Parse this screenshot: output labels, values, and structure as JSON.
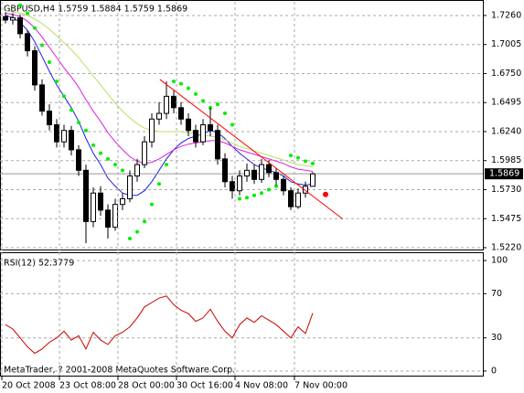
{
  "chart_data": [
    {
      "type": "candlestick",
      "title": "GBPUSD,H4  1.5759 1.5884 1.5759 1.5869",
      "x": [
        0,
        1,
        2,
        3,
        4,
        5,
        6,
        7,
        8,
        9,
        10,
        11,
        12,
        13,
        14,
        15,
        16,
        17,
        18,
        19,
        20,
        21,
        22,
        23,
        24,
        25,
        26,
        27,
        28,
        29,
        30,
        31,
        32,
        33,
        34,
        35,
        36,
        37,
        38,
        39,
        40,
        41,
        42
      ],
      "open": [
        1.725,
        1.722,
        1.724,
        1.71,
        1.695,
        1.665,
        1.642,
        1.63,
        1.615,
        1.625,
        1.608,
        1.59,
        1.545,
        1.57,
        1.555,
        1.54,
        1.56,
        1.565,
        1.585,
        1.595,
        1.615,
        1.635,
        1.64,
        1.655,
        1.645,
        1.635,
        1.625,
        1.615,
        1.63,
        1.625,
        1.6,
        1.58,
        1.572,
        1.585,
        1.59,
        1.582,
        1.595,
        1.588,
        1.582,
        1.572,
        1.558,
        1.57,
        1.5759
      ],
      "high": [
        1.729,
        1.728,
        1.727,
        1.713,
        1.699,
        1.67,
        1.648,
        1.635,
        1.63,
        1.629,
        1.612,
        1.595,
        1.575,
        1.576,
        1.56,
        1.565,
        1.57,
        1.59,
        1.6,
        1.62,
        1.64,
        1.65,
        1.668,
        1.66,
        1.65,
        1.64,
        1.63,
        1.635,
        1.645,
        1.63,
        1.605,
        1.585,
        1.59,
        1.596,
        1.595,
        1.6,
        1.599,
        1.592,
        1.585,
        1.575,
        1.574,
        1.58,
        1.5884
      ],
      "low": [
        1.719,
        1.718,
        1.706,
        1.69,
        1.66,
        1.638,
        1.625,
        1.61,
        1.61,
        1.603,
        1.585,
        1.526,
        1.54,
        1.55,
        1.53,
        1.537,
        1.555,
        1.562,
        1.58,
        1.592,
        1.61,
        1.63,
        1.635,
        1.64,
        1.63,
        1.62,
        1.61,
        1.612,
        1.62,
        1.595,
        1.575,
        1.565,
        1.568,
        1.58,
        1.578,
        1.579,
        1.584,
        1.577,
        1.568,
        1.555,
        1.556,
        1.566,
        1.5759
      ],
      "close": [
        1.722,
        1.724,
        1.71,
        1.695,
        1.665,
        1.642,
        1.63,
        1.615,
        1.625,
        1.608,
        1.59,
        1.545,
        1.57,
        1.555,
        1.54,
        1.56,
        1.565,
        1.585,
        1.595,
        1.615,
        1.635,
        1.64,
        1.655,
        1.645,
        1.635,
        1.625,
        1.615,
        1.63,
        1.625,
        1.6,
        1.58,
        1.572,
        1.585,
        1.59,
        1.582,
        1.595,
        1.588,
        1.582,
        1.572,
        1.558,
        1.57,
        1.5759,
        1.5869
      ],
      "series": [
        {
          "style": "line",
          "color": "#2020e0",
          "values": [
            1.726,
            1.724,
            1.72,
            1.713,
            1.703,
            1.69,
            1.677,
            1.665,
            1.655,
            1.645,
            1.633,
            1.618,
            1.605,
            1.595,
            1.583,
            1.576,
            1.57,
            1.568,
            1.568,
            1.572,
            1.58,
            1.59,
            1.6,
            1.608,
            1.614,
            1.618,
            1.62,
            1.622,
            1.625,
            1.623,
            1.618,
            1.611,
            1.605,
            1.6,
            1.595,
            1.592,
            1.59,
            1.588,
            1.585,
            1.58,
            1.578,
            1.577,
            1.578
          ]
        },
        {
          "style": "line",
          "color": "#e020e0",
          "values": [
            1.728,
            1.727,
            1.725,
            1.721,
            1.715,
            1.707,
            1.698,
            1.689,
            1.68,
            1.672,
            1.663,
            1.652,
            1.642,
            1.633,
            1.623,
            1.615,
            1.608,
            1.602,
            1.598,
            1.596,
            1.597,
            1.6,
            1.604,
            1.608,
            1.611,
            1.613,
            1.614,
            1.615,
            1.616,
            1.616,
            1.614,
            1.611,
            1.608,
            1.606,
            1.604,
            1.602,
            1.6,
            1.598,
            1.596,
            1.593,
            1.591,
            1.59,
            1.589
          ]
        },
        {
          "style": "line",
          "color": "#b8e060",
          "values": [
            1.73,
            1.729,
            1.728,
            1.726,
            1.723,
            1.719,
            1.714,
            1.708,
            1.702,
            1.696,
            1.689,
            1.681,
            1.673,
            1.665,
            1.657,
            1.649,
            1.642,
            1.636,
            1.631,
            1.627,
            1.625,
            1.624,
            1.624,
            1.624,
            1.624,
            1.623,
            1.622,
            1.621,
            1.62,
            1.619,
            1.617,
            1.614,
            1.611,
            1.609,
            1.607,
            1.605,
            1.603,
            1.601,
            1.599,
            1.597,
            1.595,
            1.594,
            1.593
          ]
        },
        {
          "style": "dots",
          "color": "#00ee00",
          "values": [
            null,
            null,
            1.735,
            1.728,
            1.715,
            1.7,
            1.685,
            1.668,
            1.655,
            1.643,
            1.632,
            1.625,
            1.612,
            1.605,
            1.6,
            1.595,
            1.59,
            1.53,
            1.536,
            1.545,
            1.56,
            1.578,
            1.595,
            1.668,
            1.666,
            1.662,
            1.657,
            1.651,
            1.645,
            1.648,
            1.64,
            1.63,
            1.565,
            1.566,
            1.568,
            1.57,
            1.573,
            1.576,
            1.58,
            1.603,
            1.601,
            1.598,
            1.596
          ]
        }
      ],
      "trend_line": {
        "x": [
          21.1,
          46.1
        ],
        "y": [
          1.6698,
          1.5472
        ],
        "color": "#ff0000"
      },
      "marker": {
        "x": 43.75,
        "y": 1.5688,
        "color": "#ff0000"
      },
      "last_price": 1.5869,
      "xlim": [
        -0.75,
        65.25
      ],
      "ylim": [
        1.5196,
        1.738
      ],
      "yticks": [
        {
          "value": 1.726,
          "label": "1.7260"
        },
        1.7005,
        {
          "value": 1.675,
          "label": "1.6750"
        },
        1.6495,
        {
          "value": 1.624,
          "label": "1.6240"
        },
        1.5985,
        {
          "value": 1.573,
          "label": "1.5730"
        },
        1.5475,
        {
          "value": 1.522,
          "label": "1.5220"
        }
      ],
      "grid": true
    },
    {
      "type": "line",
      "title": "RSI(12) 52.3779",
      "footer": "MetaTrader, ? 2001-2008 MetaQuotes Software Corp.",
      "x": [
        0,
        1,
        2,
        3,
        4,
        5,
        6,
        7,
        8,
        9,
        10,
        11,
        12,
        13,
        14,
        15,
        16,
        17,
        18,
        19,
        20,
        21,
        22,
        23,
        24,
        25,
        26,
        27,
        28,
        29,
        30,
        31,
        32,
        33,
        34,
        35,
        36,
        37,
        38,
        39,
        40,
        41,
        42
      ],
      "values": [
        42,
        38,
        30,
        22,
        16,
        20,
        26,
        30,
        36,
        28,
        32,
        20,
        35,
        28,
        24,
        32,
        35,
        40,
        48,
        58,
        62,
        66,
        68,
        60,
        55,
        52,
        45,
        48,
        56,
        45,
        36,
        30,
        42,
        48,
        44,
        50,
        46,
        42,
        36,
        30,
        40,
        34,
        52.3779
      ],
      "color": "#cc0000",
      "xlim": [
        -0.75,
        65.25
      ],
      "ylim": [
        -5,
        107.5
      ],
      "yticks": [
        100,
        70,
        30,
        0
      ],
      "xticks": [
        {
          "value": -0.5,
          "label": "20 Oct 2008"
        },
        {
          "value": 7.375,
          "label": "23 Oct 08:00"
        },
        {
          "value": 15.375,
          "label": "28 Oct 00:00"
        },
        {
          "value": 23.375,
          "label": "30 Oct 16:00"
        },
        {
          "value": 31.375,
          "label": "4 Nov 08:00"
        },
        {
          "value": 39.5,
          "label": "7 Nov 00:00"
        }
      ],
      "grid": true
    }
  ]
}
